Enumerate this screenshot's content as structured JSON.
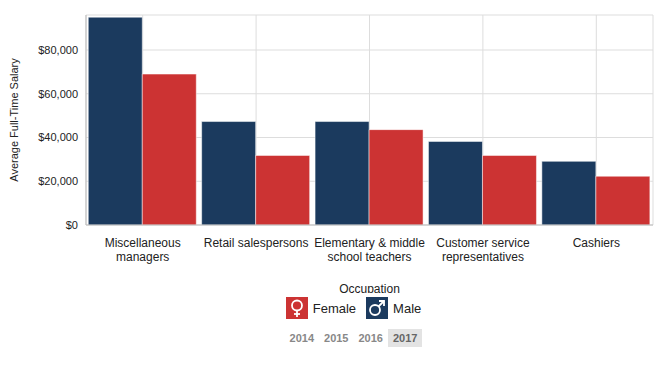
{
  "chart_data": {
    "type": "bar",
    "x_label": "Occupation",
    "y_label": "Average Full-Time Salary",
    "categories": [
      "Miscellaneous managers",
      "Retail salespersons",
      "Elementary & middle school teachers",
      "Customer service representatives",
      "Cashiers"
    ],
    "series": [
      {
        "name": "Male",
        "color": "#1b3a5e",
        "values": [
          95000,
          47300,
          47300,
          38200,
          29100
        ]
      },
      {
        "name": "Female",
        "color": "#cc3333",
        "values": [
          69000,
          31800,
          43600,
          31800,
          22300
        ]
      }
    ],
    "ylim": [
      0,
      96000
    ],
    "yticks": [
      {
        "value": 0,
        "label": "$0"
      },
      {
        "value": 20000,
        "label": "$20,000"
      },
      {
        "value": 40000,
        "label": "$40,000"
      },
      {
        "value": 60000,
        "label": "$60,000"
      },
      {
        "value": 80000,
        "label": "$80,000"
      }
    ],
    "grid": true,
    "legend": "bottom",
    "annotations": [
      "2014",
      "2015",
      "2016",
      "2017"
    ]
  }
}
